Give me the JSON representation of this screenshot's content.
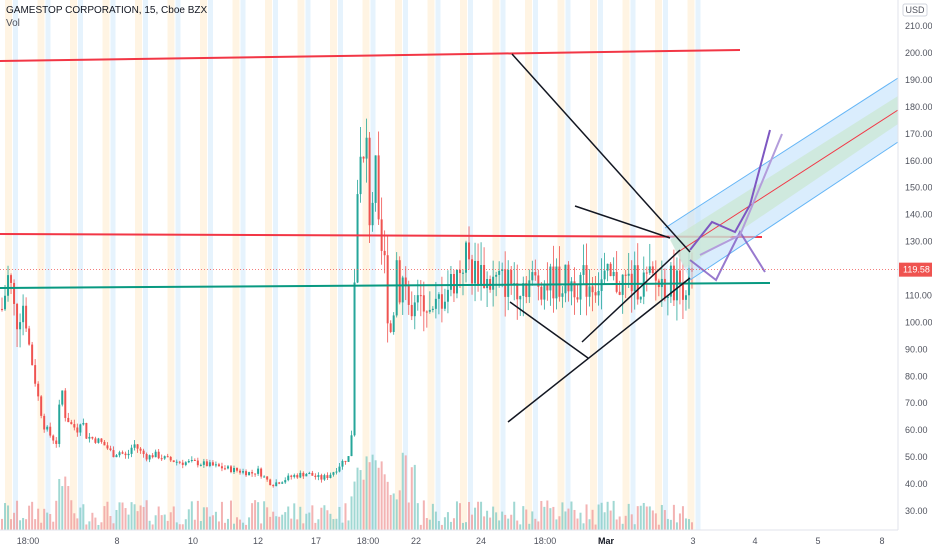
{
  "header": {
    "symbol": "GAMESTOP CORPORATION, 15, Cboe BZX",
    "volume_label": "Vol"
  },
  "chart_data": {
    "type": "candlestick",
    "currency": "USD",
    "last_price": "119.58",
    "last_price_value": 119.58,
    "y_ticks": [
      20,
      30,
      40,
      50,
      60,
      70,
      80,
      90,
      100,
      110,
      120,
      130,
      140,
      150,
      160,
      170,
      180,
      190,
      200,
      210
    ],
    "y_tick_labels": [
      "20.00",
      "30.00",
      "40.00",
      "50.00",
      "60.00",
      "70.00",
      "80.00",
      "90.00",
      "100.00",
      "110.00",
      "120.00",
      "130.00",
      "140.00",
      "150.00",
      "160.00",
      "170.00",
      "180.00",
      "190.00",
      "200.00",
      "210.00"
    ],
    "x_ticks": [
      {
        "label": "18:00",
        "bold": false
      },
      {
        "label": "8",
        "bold": false
      },
      {
        "label": "10",
        "bold": false
      },
      {
        "label": "12",
        "bold": false
      },
      {
        "label": "17",
        "bold": false
      },
      {
        "label": "18:00",
        "bold": false
      },
      {
        "label": "22",
        "bold": false
      },
      {
        "label": "24",
        "bold": false
      },
      {
        "label": "18:00",
        "bold": false
      },
      {
        "label": "Mar",
        "bold": true
      },
      {
        "label": "3",
        "bold": false
      },
      {
        "label": "4",
        "bold": false
      },
      {
        "label": "5",
        "bold": false
      },
      {
        "label": "8",
        "bold": false
      }
    ],
    "price_path": [
      [
        0,
        105
      ],
      [
        0.01,
        118
      ],
      [
        0.02,
        100
      ],
      [
        0.03,
        108
      ],
      [
        0.04,
        90
      ],
      [
        0.05,
        75
      ],
      [
        0.06,
        62
      ],
      [
        0.07,
        58
      ],
      [
        0.08,
        55
      ],
      [
        0.085,
        80
      ],
      [
        0.09,
        66
      ],
      [
        0.1,
        62
      ],
      [
        0.11,
        60
      ],
      [
        0.115,
        66
      ],
      [
        0.12,
        58
      ],
      [
        0.13,
        57
      ],
      [
        0.14,
        56
      ],
      [
        0.15,
        54
      ],
      [
        0.16,
        51
      ],
      [
        0.17,
        52
      ],
      [
        0.18,
        50
      ],
      [
        0.19,
        55
      ],
      [
        0.2,
        52
      ],
      [
        0.21,
        50
      ],
      [
        0.22,
        51
      ],
      [
        0.23,
        50
      ],
      [
        0.24,
        49
      ],
      [
        0.26,
        48
      ],
      [
        0.28,
        48
      ],
      [
        0.3,
        47
      ],
      [
        0.32,
        46
      ],
      [
        0.34,
        45
      ],
      [
        0.36,
        44
      ],
      [
        0.37,
        45
      ],
      [
        0.38,
        42
      ],
      [
        0.39,
        40
      ],
      [
        0.4,
        41
      ],
      [
        0.42,
        43
      ],
      [
        0.44,
        44
      ],
      [
        0.46,
        42
      ],
      [
        0.47,
        43
      ],
      [
        0.48,
        45
      ],
      [
        0.49,
        48
      ],
      [
        0.5,
        50
      ],
      [
        0.505,
        60
      ],
      [
        0.508,
        100
      ],
      [
        0.51,
        140
      ],
      [
        0.515,
        165
      ],
      [
        0.52,
        150
      ],
      [
        0.525,
        170
      ],
      [
        0.53,
        140
      ],
      [
        0.54,
        155
      ],
      [
        0.545,
        120
      ],
      [
        0.55,
        130
      ],
      [
        0.555,
        110
      ],
      [
        0.56,
        95
      ],
      [
        0.565,
        105
      ],
      [
        0.57,
        125
      ],
      [
        0.575,
        110
      ],
      [
        0.58,
        120
      ],
      [
        0.59,
        100
      ],
      [
        0.6,
        105
      ],
      [
        0.61,
        110
      ],
      [
        0.62,
        100
      ],
      [
        0.63,
        108
      ],
      [
        0.64,
        112
      ],
      [
        0.65,
        115
      ],
      [
        0.66,
        120
      ],
      [
        0.67,
        125
      ],
      [
        0.68,
        118
      ],
      [
        0.69,
        120
      ],
      [
        0.7,
        115
      ]
    ],
    "annotations": {
      "resistance_top": "red line ~197-201",
      "resistance_mid": "red line ~133-131",
      "support": "teal line ~113-115",
      "pitchfork_channel": "blue/green rising channel from ~125 to ~185"
    }
  }
}
